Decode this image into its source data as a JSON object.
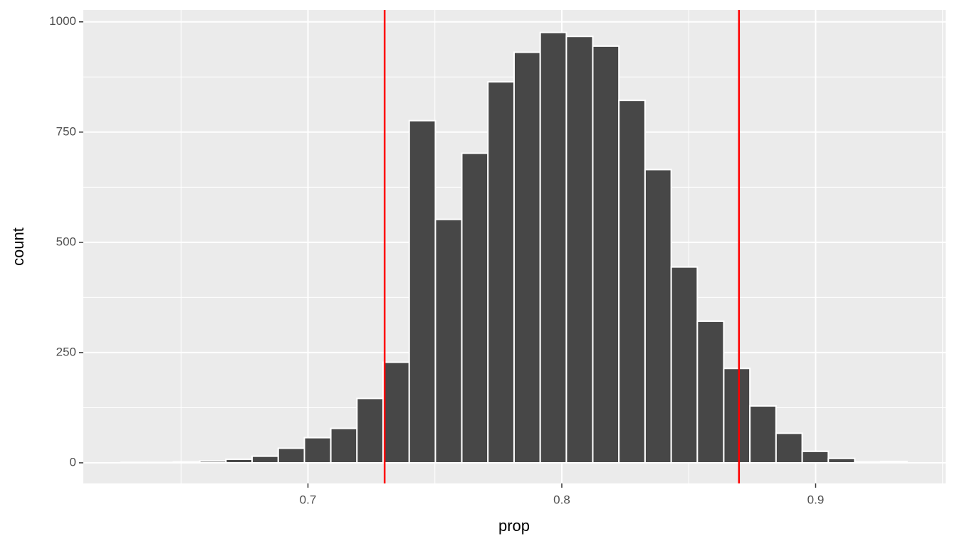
{
  "chart_data": {
    "type": "histogram",
    "x_label": "prop",
    "y_label": "count",
    "bins": [
      0.6264,
      0.6367,
      0.647,
      0.6574,
      0.6677,
      0.678,
      0.6883,
      0.6986,
      0.709,
      0.7193,
      0.7296,
      0.7399,
      0.7502,
      0.7606,
      0.7709,
      0.7812,
      0.7915,
      0.8018,
      0.8122,
      0.8225,
      0.8328,
      0.8431,
      0.8534,
      0.8638,
      0.8741,
      0.8844,
      0.8947,
      0.905,
      0.9154,
      0.9257,
      0.936
    ],
    "values": [
      1,
      1,
      2,
      4,
      8,
      15,
      33,
      57,
      78,
      146,
      228,
      776,
      552,
      702,
      864,
      931,
      976,
      967,
      945,
      822,
      665,
      444,
      321,
      214,
      129,
      67,
      26,
      10,
      2,
      3
    ],
    "color": "#474747",
    "vlines": [
      0.7302,
      0.8698
    ],
    "vline_color": "#ff0000",
    "xlim": [
      0.6115,
      0.9512
    ],
    "xticks": [
      0.7,
      0.8,
      0.9
    ],
    "ylim": [
      -46.8,
      1027
    ],
    "yticks": [
      0,
      250,
      500,
      750,
      1000
    ],
    "grid": true
  }
}
